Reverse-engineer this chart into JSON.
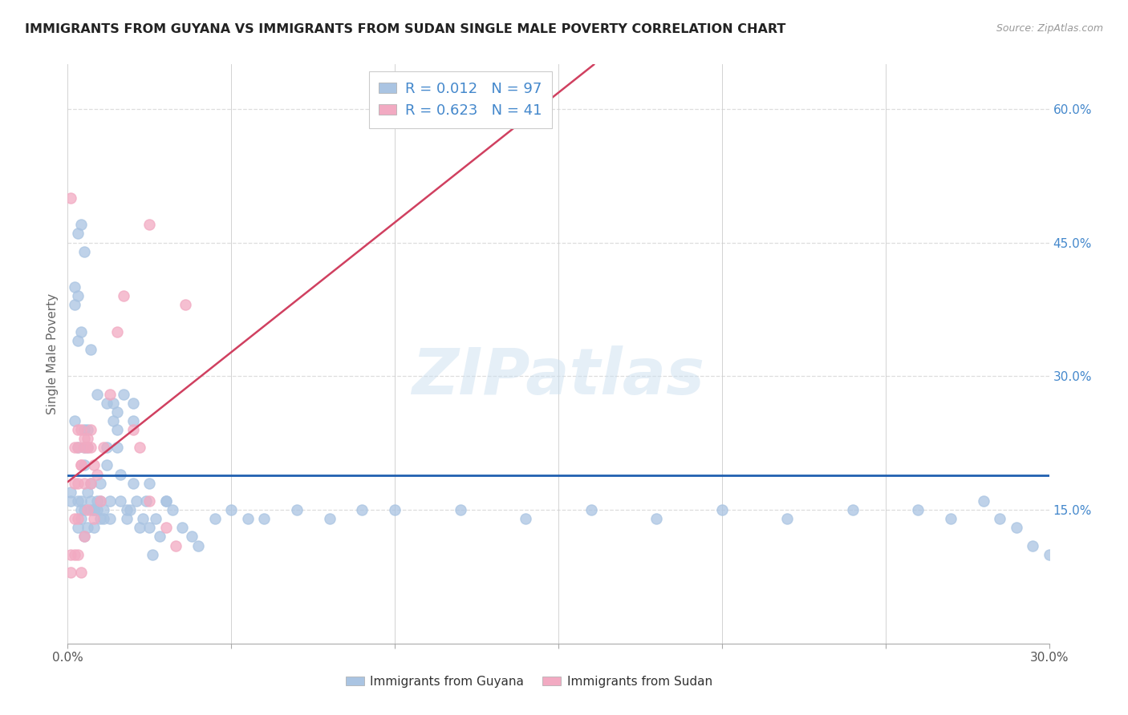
{
  "title": "IMMIGRANTS FROM GUYANA VS IMMIGRANTS FROM SUDAN SINGLE MALE POVERTY CORRELATION CHART",
  "source": "Source: ZipAtlas.com",
  "ylabel": "Single Male Poverty",
  "xlim": [
    0.0,
    0.3
  ],
  "ylim": [
    0.0,
    0.65
  ],
  "xtick_vals": [
    0.0,
    0.05,
    0.1,
    0.15,
    0.2,
    0.25,
    0.3
  ],
  "xtick_edge_labels": {
    "0": "0.0%",
    "6": "30.0%"
  },
  "right_ytick_vals": [
    0.15,
    0.3,
    0.45,
    0.6
  ],
  "right_ytick_labels": [
    "15.0%",
    "30.0%",
    "45.0%",
    "60.0%"
  ],
  "guyana_R": 0.012,
  "guyana_N": 97,
  "sudan_R": 0.623,
  "sudan_N": 41,
  "guyana_color": "#aac4e2",
  "sudan_color": "#f2aac2",
  "trendline_guyana_color": "#2060b0",
  "trendline_sudan_color": "#d04060",
  "legend_text_color": "#4488cc",
  "background_color": "#ffffff",
  "grid_color": "#dddddd",
  "watermark": "ZIPatlas",
  "guyana_x": [
    0.001,
    0.001,
    0.002,
    0.002,
    0.002,
    0.003,
    0.003,
    0.003,
    0.003,
    0.003,
    0.004,
    0.004,
    0.004,
    0.004,
    0.005,
    0.005,
    0.005,
    0.005,
    0.005,
    0.006,
    0.006,
    0.006,
    0.006,
    0.007,
    0.007,
    0.007,
    0.008,
    0.008,
    0.008,
    0.009,
    0.009,
    0.01,
    0.01,
    0.01,
    0.011,
    0.011,
    0.012,
    0.012,
    0.013,
    0.013,
    0.014,
    0.014,
    0.015,
    0.015,
    0.016,
    0.016,
    0.017,
    0.018,
    0.018,
    0.019,
    0.02,
    0.02,
    0.021,
    0.022,
    0.023,
    0.024,
    0.025,
    0.026,
    0.027,
    0.028,
    0.03,
    0.032,
    0.035,
    0.038,
    0.04,
    0.045,
    0.05,
    0.055,
    0.06,
    0.07,
    0.08,
    0.09,
    0.1,
    0.12,
    0.14,
    0.16,
    0.18,
    0.2,
    0.22,
    0.24,
    0.26,
    0.27,
    0.28,
    0.285,
    0.29,
    0.295,
    0.3,
    0.003,
    0.004,
    0.005,
    0.007,
    0.009,
    0.012,
    0.015,
    0.02,
    0.025,
    0.03
  ],
  "guyana_y": [
    0.17,
    0.16,
    0.4,
    0.38,
    0.25,
    0.34,
    0.39,
    0.22,
    0.16,
    0.13,
    0.15,
    0.14,
    0.35,
    0.16,
    0.24,
    0.22,
    0.2,
    0.15,
    0.12,
    0.24,
    0.22,
    0.17,
    0.13,
    0.18,
    0.16,
    0.15,
    0.15,
    0.15,
    0.13,
    0.16,
    0.15,
    0.18,
    0.16,
    0.14,
    0.15,
    0.14,
    0.22,
    0.2,
    0.16,
    0.14,
    0.27,
    0.25,
    0.26,
    0.24,
    0.19,
    0.16,
    0.28,
    0.15,
    0.14,
    0.15,
    0.27,
    0.25,
    0.16,
    0.13,
    0.14,
    0.16,
    0.13,
    0.1,
    0.14,
    0.12,
    0.16,
    0.15,
    0.13,
    0.12,
    0.11,
    0.14,
    0.15,
    0.14,
    0.14,
    0.15,
    0.14,
    0.15,
    0.15,
    0.15,
    0.14,
    0.15,
    0.14,
    0.15,
    0.14,
    0.15,
    0.15,
    0.14,
    0.16,
    0.14,
    0.13,
    0.11,
    0.1,
    0.46,
    0.47,
    0.44,
    0.33,
    0.28,
    0.27,
    0.22,
    0.18,
    0.18,
    0.16
  ],
  "sudan_x": [
    0.001,
    0.001,
    0.001,
    0.002,
    0.002,
    0.002,
    0.002,
    0.003,
    0.003,
    0.003,
    0.003,
    0.004,
    0.004,
    0.004,
    0.005,
    0.005,
    0.005,
    0.006,
    0.006,
    0.007,
    0.007,
    0.008,
    0.008,
    0.009,
    0.01,
    0.011,
    0.013,
    0.015,
    0.017,
    0.02,
    0.022,
    0.025,
    0.03,
    0.033,
    0.036,
    0.003,
    0.004,
    0.005,
    0.006,
    0.007,
    0.025
  ],
  "sudan_y": [
    0.5,
    0.1,
    0.08,
    0.22,
    0.18,
    0.14,
    0.1,
    0.24,
    0.22,
    0.18,
    0.1,
    0.24,
    0.2,
    0.08,
    0.23,
    0.18,
    0.12,
    0.22,
    0.15,
    0.22,
    0.18,
    0.2,
    0.14,
    0.19,
    0.16,
    0.22,
    0.28,
    0.35,
    0.39,
    0.24,
    0.22,
    0.16,
    0.13,
    0.11,
    0.38,
    0.14,
    0.2,
    0.22,
    0.23,
    0.24,
    0.47
  ]
}
